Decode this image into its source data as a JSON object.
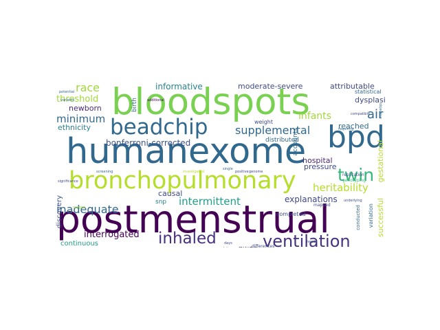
{
  "words": {
    "postmenstrual": {
      "text": "postmenstrual",
      "color": "#440154"
    },
    "humanexome": {
      "text": "humanexome",
      "color": "#31688e"
    },
    "bloodspots": {
      "text": "bloodspots",
      "color": "#7ad151"
    },
    "bronchopulmonary": {
      "text": "bronchopulmonary",
      "color": "#b5de2b"
    },
    "beadchip": {
      "text": "beadchip",
      "color": "#31688e"
    },
    "bpd": {
      "text": "bpd",
      "color": "#31688e"
    },
    "ventilation": {
      "text": "ventilation",
      "color": "#46327e"
    },
    "inhaled": {
      "text": "inhaled",
      "color": "#46327e"
    },
    "twin": {
      "text": "twin",
      "color": "#35b779"
    },
    "supplemental": {
      "text": "supplemental",
      "color": "#31688e"
    },
    "heritability": {
      "text": "heritability",
      "color": "#b5de2b"
    },
    "bonferroni": {
      "text": "bonferroni-corrected",
      "color": "#3b528b"
    },
    "intermittent": {
      "text": "intermittent",
      "color": "#1f9e89"
    },
    "interrogated": {
      "text": "interrogated",
      "color": "#440154"
    },
    "minimum": {
      "text": "minimum",
      "color": "#31688e"
    },
    "inadequate": {
      "text": "inadequate",
      "color": "#31688e"
    },
    "air": {
      "text": "air",
      "color": "#31688e"
    },
    "infants": {
      "text": "infants",
      "color": "#a0da39"
    },
    "race": {
      "text": "race",
      "color": "#a0da39"
    },
    "threshold": {
      "text": "threshold",
      "color": "#a0da39"
    },
    "newborn": {
      "text": "newborn",
      "color": "#482878"
    },
    "ethnicity": {
      "text": "ethnicity",
      "color": "#26828e"
    },
    "informative": {
      "text": "informative",
      "color": "#26828e"
    },
    "moderate": {
      "text": "moderate-severe",
      "color": "#3e4989"
    },
    "attributable": {
      "text": "attributable",
      "color": "#3e4989"
    },
    "dysplasia": {
      "text": "dysplasia",
      "color": "#3e4989"
    },
    "reached": {
      "text": "reached",
      "color": "#31688e"
    },
    "hospital": {
      "text": "hospital",
      "color": "#482878"
    },
    "pressure": {
      "text": "pressure",
      "color": "#3e4989"
    },
    "explanations": {
      "text": "explanations",
      "color": "#3e4989"
    },
    "causal": {
      "text": "causal",
      "color": "#3e4989"
    },
    "gwas": {
      "text": "gwas",
      "color": "#3e4989"
    },
    "continuous": {
      "text": "continuous",
      "color": "#1f9e89"
    },
    "discovery": {
      "text": "discovery",
      "color": "#3b528b"
    },
    "successful": {
      "text": "successful",
      "color": "#b5de2b"
    },
    "gestational": {
      "text": "gestational",
      "color": "#b5de2b"
    },
    "accounts": {
      "text": "accounts",
      "color": "#31688e"
    },
    "distributed": {
      "text": "distributed",
      "color": "#31688e"
    },
    "completed": {
      "text": "completed",
      "color": "#3e4989"
    },
    "weight": {
      "text": "weight",
      "color": "#3e4989"
    },
    "snp": {
      "text": "snp",
      "color": "#26828e"
    },
    "statistical": {
      "text": "statistical",
      "color": "#31688e"
    },
    "birth": {
      "text": "birth",
      "color": "#31688e"
    },
    "variation": {
      "text": "variation",
      "color": "#31688e"
    },
    "conducted": {
      "text": "conducted",
      "color": "#31688e"
    },
    "replication": {
      "text": "replication",
      "color": "#3e4989"
    },
    "genotyping": {
      "text": "genotyping",
      "color": "#35b779"
    },
    "mapped": {
      "text": "mapped",
      "color": "#3e4989"
    },
    "differences": {
      "text": "differences",
      "color": "#3e4989"
    },
    "population": {
      "text": "population",
      "color": "#3e4989"
    },
    "genome": {
      "text": "genome",
      "color": "#3e4989"
    },
    "potential": {
      "text": "potential",
      "color": "#31688e"
    },
    "significance": {
      "text": "significance",
      "color": "#3e4989"
    },
    "oxygen": {
      "text": "oxygen",
      "color": "#a0da39"
    },
    "analyses": {
      "text": "analyses",
      "color": "#3e4989"
    },
    "days": {
      "text": "days",
      "color": "#3e4989"
    },
    "variants": {
      "text": "variants",
      "color": "#31688e"
    },
    "requiring": {
      "text": "requiring",
      "color": "#31688e"
    },
    "positive": {
      "text": "positive",
      "color": "#3e4989"
    },
    "needs": {
      "text": "needs",
      "color": "#3e4989"
    },
    "single": {
      "text": "single",
      "color": "#31688e"
    },
    "screening": {
      "text": "screening",
      "color": "#31688e"
    },
    "investigated": {
      "text": "investigated",
      "color": "#b5de2b"
    },
    "additional": {
      "text": "additional",
      "color": "#440154"
    },
    "compatible": {
      "text": "compatible",
      "color": "#3e4989"
    },
    "objective": {
      "text": "objective",
      "color": "#31688e"
    },
    "underlying": {
      "text": "underlying",
      "color": "#3e4989"
    }
  }
}
